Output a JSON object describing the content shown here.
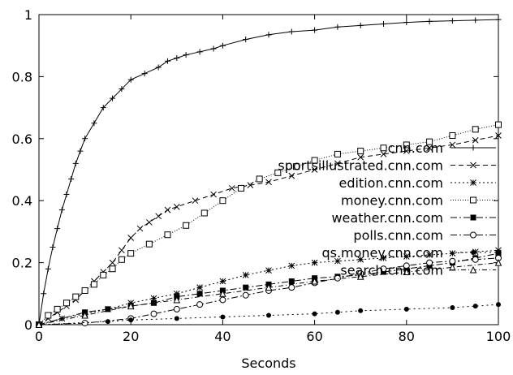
{
  "chart_data": {
    "type": "line",
    "title": "",
    "xlabel": "Seconds",
    "ylabel": "",
    "xlim": [
      0,
      100
    ],
    "ylim": [
      0,
      1
    ],
    "xticks": [
      "0",
      "20",
      "40",
      "60",
      "80",
      "100"
    ],
    "yticks": [
      "0",
      "0.2",
      "0.4",
      "0.6",
      "0.8",
      "1"
    ],
    "grid": false,
    "legend_position": "center-right",
    "series": [
      {
        "name": "cnn.com",
        "marker": "plus",
        "dash": "solid",
        "points": [
          [
            0,
            0
          ],
          [
            1,
            0.1
          ],
          [
            2,
            0.18
          ],
          [
            3,
            0.25
          ],
          [
            4,
            0.31
          ],
          [
            5,
            0.37
          ],
          [
            6,
            0.42
          ],
          [
            7,
            0.47
          ],
          [
            8,
            0.52
          ],
          [
            9,
            0.56
          ],
          [
            10,
            0.6
          ],
          [
            12,
            0.65
          ],
          [
            14,
            0.7
          ],
          [
            16,
            0.73
          ],
          [
            18,
            0.76
          ],
          [
            20,
            0.79
          ],
          [
            23,
            0.81
          ],
          [
            26,
            0.83
          ],
          [
            28,
            0.85
          ],
          [
            30,
            0.86
          ],
          [
            32,
            0.87
          ],
          [
            35,
            0.88
          ],
          [
            38,
            0.89
          ],
          [
            40,
            0.9
          ],
          [
            45,
            0.92
          ],
          [
            50,
            0.935
          ],
          [
            55,
            0.945
          ],
          [
            60,
            0.95
          ],
          [
            65,
            0.96
          ],
          [
            70,
            0.965
          ],
          [
            75,
            0.97
          ],
          [
            80,
            0.975
          ],
          [
            85,
            0.978
          ],
          [
            90,
            0.98
          ],
          [
            95,
            0.982
          ],
          [
            100,
            0.984
          ]
        ]
      },
      {
        "name": "sportsillustrated.cnn.com",
        "marker": "x",
        "dash": "6,4",
        "points": [
          [
            0,
            0
          ],
          [
            2,
            0.02
          ],
          [
            4,
            0.04
          ],
          [
            6,
            0.06
          ],
          [
            8,
            0.08
          ],
          [
            10,
            0.11
          ],
          [
            12,
            0.14
          ],
          [
            14,
            0.17
          ],
          [
            16,
            0.2
          ],
          [
            18,
            0.24
          ],
          [
            20,
            0.28
          ],
          [
            22,
            0.31
          ],
          [
            24,
            0.33
          ],
          [
            26,
            0.35
          ],
          [
            28,
            0.37
          ],
          [
            30,
            0.38
          ],
          [
            34,
            0.4
          ],
          [
            38,
            0.42
          ],
          [
            42,
            0.44
          ],
          [
            46,
            0.45
          ],
          [
            50,
            0.46
          ],
          [
            55,
            0.48
          ],
          [
            60,
            0.5
          ],
          [
            65,
            0.52
          ],
          [
            70,
            0.54
          ],
          [
            75,
            0.55
          ],
          [
            80,
            0.56
          ],
          [
            85,
            0.57
          ],
          [
            90,
            0.58
          ],
          [
            95,
            0.595
          ],
          [
            100,
            0.61
          ]
        ]
      },
      {
        "name": "edition.cnn.com",
        "marker": "star",
        "dash": "2,3",
        "points": [
          [
            0,
            0
          ],
          [
            5,
            0.02
          ],
          [
            10,
            0.035
          ],
          [
            15,
            0.05
          ],
          [
            20,
            0.07
          ],
          [
            25,
            0.085
          ],
          [
            30,
            0.1
          ],
          [
            35,
            0.12
          ],
          [
            40,
            0.14
          ],
          [
            45,
            0.16
          ],
          [
            50,
            0.175
          ],
          [
            55,
            0.19
          ],
          [
            60,
            0.2
          ],
          [
            65,
            0.205
          ],
          [
            70,
            0.21
          ],
          [
            75,
            0.215
          ],
          [
            80,
            0.22
          ],
          [
            85,
            0.225
          ],
          [
            90,
            0.23
          ],
          [
            95,
            0.235
          ],
          [
            100,
            0.24
          ]
        ]
      },
      {
        "name": "money.cnn.com",
        "marker": "square-open",
        "dash": "1,2",
        "points": [
          [
            0,
            0
          ],
          [
            2,
            0.03
          ],
          [
            4,
            0.05
          ],
          [
            6,
            0.07
          ],
          [
            8,
            0.09
          ],
          [
            10,
            0.11
          ],
          [
            12,
            0.13
          ],
          [
            14,
            0.16
          ],
          [
            16,
            0.18
          ],
          [
            18,
            0.21
          ],
          [
            20,
            0.23
          ],
          [
            24,
            0.26
          ],
          [
            28,
            0.29
          ],
          [
            32,
            0.32
          ],
          [
            36,
            0.36
          ],
          [
            40,
            0.4
          ],
          [
            44,
            0.44
          ],
          [
            48,
            0.47
          ],
          [
            52,
            0.49
          ],
          [
            56,
            0.51
          ],
          [
            60,
            0.53
          ],
          [
            65,
            0.55
          ],
          [
            70,
            0.56
          ],
          [
            75,
            0.57
          ],
          [
            80,
            0.58
          ],
          [
            85,
            0.59
          ],
          [
            90,
            0.61
          ],
          [
            95,
            0.63
          ],
          [
            100,
            0.645
          ]
        ]
      },
      {
        "name": "weather.cnn.com",
        "marker": "square-filled",
        "dash": "8,3,2,3",
        "points": [
          [
            0,
            0
          ],
          [
            10,
            0.04
          ],
          [
            15,
            0.05
          ],
          [
            20,
            0.06
          ],
          [
            25,
            0.07
          ],
          [
            30,
            0.09
          ],
          [
            35,
            0.1
          ],
          [
            40,
            0.11
          ],
          [
            45,
            0.12
          ],
          [
            50,
            0.13
          ],
          [
            55,
            0.14
          ],
          [
            60,
            0.15
          ],
          [
            65,
            0.155
          ],
          [
            70,
            0.16
          ],
          [
            75,
            0.17
          ],
          [
            80,
            0.18
          ],
          [
            85,
            0.19
          ],
          [
            90,
            0.2
          ],
          [
            95,
            0.215
          ],
          [
            100,
            0.23
          ]
        ]
      },
      {
        "name": "polls.cnn.com",
        "marker": "circle-open",
        "dash": "8,3,2,3",
        "points": [
          [
            0,
            0
          ],
          [
            10,
            0.005
          ],
          [
            20,
            0.02
          ],
          [
            25,
            0.035
          ],
          [
            30,
            0.05
          ],
          [
            35,
            0.065
          ],
          [
            40,
            0.08
          ],
          [
            45,
            0.095
          ],
          [
            50,
            0.11
          ],
          [
            55,
            0.12
          ],
          [
            60,
            0.135
          ],
          [
            65,
            0.15
          ],
          [
            70,
            0.165
          ],
          [
            75,
            0.18
          ],
          [
            80,
            0.19
          ],
          [
            85,
            0.2
          ],
          [
            90,
            0.205
          ],
          [
            95,
            0.21
          ],
          [
            100,
            0.215
          ]
        ]
      },
      {
        "name": "qs.money.cnn.com",
        "marker": "circle-filled",
        "dash": "2,4",
        "points": [
          [
            0,
            0
          ],
          [
            15,
            0.01
          ],
          [
            20,
            0.015
          ],
          [
            30,
            0.02
          ],
          [
            40,
            0.025
          ],
          [
            50,
            0.03
          ],
          [
            60,
            0.035
          ],
          [
            65,
            0.04
          ],
          [
            70,
            0.045
          ],
          [
            80,
            0.05
          ],
          [
            90,
            0.055
          ],
          [
            95,
            0.06
          ],
          [
            100,
            0.065
          ]
        ]
      },
      {
        "name": "search.cnn.com",
        "marker": "triangle-open",
        "dash": "6,3,1,3",
        "points": [
          [
            0,
            0
          ],
          [
            10,
            0.03
          ],
          [
            20,
            0.06
          ],
          [
            30,
            0.08
          ],
          [
            40,
            0.1
          ],
          [
            50,
            0.12
          ],
          [
            60,
            0.14
          ],
          [
            70,
            0.155
          ],
          [
            80,
            0.17
          ],
          [
            90,
            0.185
          ],
          [
            100,
            0.2
          ]
        ]
      }
    ]
  }
}
